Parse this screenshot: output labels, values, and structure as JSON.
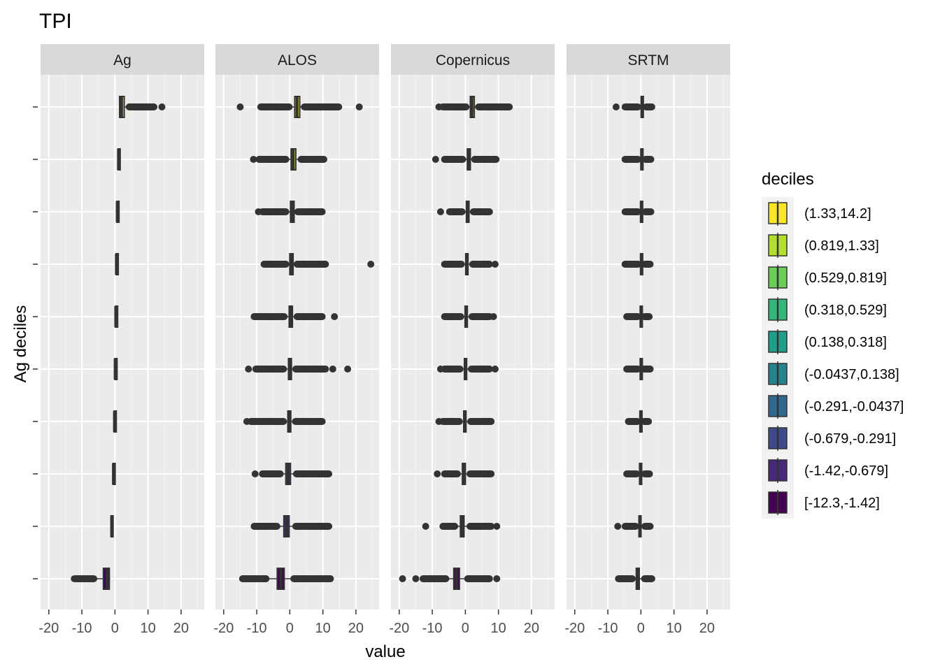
{
  "chart_data": {
    "type": "boxplot",
    "title": "TPI",
    "xlabel": "value",
    "ylabel": "Ag deciles",
    "xlim": [
      -22.5,
      27
    ],
    "x_ticks": [
      -20,
      -10,
      0,
      10,
      20
    ],
    "x_tick_labels": [
      "-20",
      "-10",
      "0",
      "10",
      "20"
    ],
    "grid": true,
    "facets": [
      "Ag",
      "ALOS",
      "Copernicus",
      "SRTM"
    ],
    "legend": {
      "title": "deciles",
      "position": "right",
      "items": [
        {
          "label": "(1.33,14.2]",
          "color": "#FDE725"
        },
        {
          "label": "(0.819,1.33]",
          "color": "#B4DE2C"
        },
        {
          "label": "(0.529,0.819]",
          "color": "#6DCD59"
        },
        {
          "label": "(0.318,0.529]",
          "color": "#35B779"
        },
        {
          "label": "(0.138,0.318]",
          "color": "#1F9E89"
        },
        {
          "label": "(-0.0437,0.138]",
          "color": "#26828E"
        },
        {
          "label": "(-0.291,-0.0437]",
          "color": "#31688E"
        },
        {
          "label": "(-0.679,-0.291]",
          "color": "#3E4A89"
        },
        {
          "label": "(-1.42,-0.679]",
          "color": "#482878"
        },
        {
          "label": "[-12.3,-1.42]",
          "color": "#440154"
        }
      ]
    },
    "series": [
      {
        "facet": "Ag",
        "boxes": [
          {
            "q1": 1.4,
            "median": 2.0,
            "q3": 2.8,
            "wlo": 1.33,
            "whi": 4.0,
            "outlier_ranges": [
              [
                4.1,
                12.0
              ]
            ],
            "outliers": [
              14.2
            ]
          },
          {
            "q1": 0.95,
            "median": 1.05,
            "q3": 1.2,
            "wlo": 0.82,
            "whi": 1.33,
            "outlier_ranges": [],
            "outliers": []
          },
          {
            "q1": 0.6,
            "median": 0.67,
            "q3": 0.76,
            "wlo": 0.53,
            "whi": 0.82,
            "outlier_ranges": [],
            "outliers": []
          },
          {
            "q1": 0.37,
            "median": 0.42,
            "q3": 0.48,
            "wlo": 0.32,
            "whi": 0.53,
            "outlier_ranges": [],
            "outliers": []
          },
          {
            "q1": 0.18,
            "median": 0.23,
            "q3": 0.27,
            "wlo": 0.14,
            "whi": 0.32,
            "outlier_ranges": [],
            "outliers": []
          },
          {
            "q1": 0.0,
            "median": 0.05,
            "q3": 0.1,
            "wlo": -0.04,
            "whi": 0.14,
            "outlier_ranges": [],
            "outliers": []
          },
          {
            "q1": -0.23,
            "median": -0.16,
            "q3": -0.1,
            "wlo": -0.29,
            "whi": -0.04,
            "outlier_ranges": [],
            "outliers": []
          },
          {
            "q1": -0.58,
            "median": -0.48,
            "q3": -0.38,
            "wlo": -0.68,
            "whi": -0.29,
            "outlier_ranges": [],
            "outliers": []
          },
          {
            "q1": -1.2,
            "median": -1.0,
            "q3": -0.85,
            "wlo": -1.42,
            "whi": -0.68,
            "outlier_ranges": [],
            "outliers": []
          },
          {
            "q1": -3.5,
            "median": -2.4,
            "q3": -1.7,
            "wlo": -6.0,
            "whi": -1.42,
            "outlier_ranges": [
              [
                -12.0,
                -6.2
              ]
            ],
            "outliers": [
              -12.3
            ]
          }
        ]
      },
      {
        "facet": "ALOS",
        "boxes": [
          {
            "q1": 1.5,
            "median": 2.2,
            "q3": 3.0,
            "wlo": 0.3,
            "whi": 4.0,
            "outlier_ranges": [
              [
                -9.0,
                0.0
              ],
              [
                4.2,
                15.0
              ]
            ],
            "outliers": [
              -15.0,
              21.0
            ]
          },
          {
            "q1": 0.4,
            "median": 1.0,
            "q3": 1.8,
            "wlo": -0.8,
            "whi": 3.0,
            "outlier_ranges": [
              [
                -9.5,
                -1.0
              ],
              [
                3.2,
                10.5
              ]
            ],
            "outliers": [
              -11.0
            ]
          },
          {
            "q1": 0.2,
            "median": 0.7,
            "q3": 1.3,
            "wlo": -0.8,
            "whi": 2.0,
            "outlier_ranges": [
              [
                -8.5,
                -1.0
              ],
              [
                2.2,
                10.0
              ]
            ],
            "outliers": [
              -9.5
            ]
          },
          {
            "q1": 0.0,
            "median": 0.5,
            "q3": 1.0,
            "wlo": -0.8,
            "whi": 1.8,
            "outlier_ranges": [
              [
                -8.0,
                -1.0
              ],
              [
                2.0,
                11.0
              ]
            ],
            "outliers": [
              24.5
            ]
          },
          {
            "q1": -0.2,
            "median": 0.3,
            "q3": 0.8,
            "wlo": -1.2,
            "whi": 1.6,
            "outlier_ranges": [
              [
                -11.0,
                -1.5
              ],
              [
                2.0,
                10.0
              ]
            ],
            "outliers": [
              13.5
            ]
          },
          {
            "q1": -0.4,
            "median": 0.0,
            "q3": 0.5,
            "wlo": -1.5,
            "whi": 1.4,
            "outlier_ranges": [
              [
                -10.5,
                -1.7
              ],
              [
                1.6,
                11.0
              ]
            ],
            "outliers": [
              -12.5,
              13.0,
              17.5
            ]
          },
          {
            "q1": -0.6,
            "median": -0.2,
            "q3": 0.3,
            "wlo": -1.5,
            "whi": 1.2,
            "outlier_ranges": [
              [
                -12.0,
                -1.7
              ],
              [
                1.5,
                10.0
              ]
            ],
            "outliers": [
              -13.0
            ]
          },
          {
            "q1": -1.2,
            "median": -0.5,
            "q3": 0.2,
            "wlo": -2.5,
            "whi": 1.5,
            "outlier_ranges": [
              [
                -8.5,
                -2.7
              ],
              [
                1.8,
                12.0
              ]
            ],
            "outliers": [
              -10.5
            ]
          },
          {
            "q1": -1.8,
            "median": -1.0,
            "q3": -0.2,
            "wlo": -3.5,
            "whi": 1.4,
            "outlier_ranges": [
              [
                -11.0,
                -3.7
              ],
              [
                1.6,
                12.0
              ]
            ],
            "outliers": []
          },
          {
            "q1": -3.8,
            "median": -2.7,
            "q3": -1.7,
            "wlo": -6.8,
            "whi": 0.8,
            "outlier_ranges": [
              [
                -14.5,
                -7.0
              ],
              [
                1.0,
                12.5
              ]
            ],
            "outliers": []
          }
        ]
      },
      {
        "facet": "Copernicus",
        "boxes": [
          {
            "q1": 1.5,
            "median": 2.0,
            "q3": 2.7,
            "wlo": 0.6,
            "whi": 3.5,
            "outlier_ranges": [
              [
                -7.0,
                0.4
              ],
              [
                3.8,
                13.5
              ]
            ],
            "outliers": [
              -8.0
            ]
          },
          {
            "q1": 0.6,
            "median": 1.0,
            "q3": 1.5,
            "wlo": -0.4,
            "whi": 2.4,
            "outlier_ranges": [
              [
                -6.5,
                -0.6
              ],
              [
                2.6,
                9.5
              ]
            ],
            "outliers": [
              -9.0
            ]
          },
          {
            "q1": 0.3,
            "median": 0.6,
            "q3": 1.1,
            "wlo": -0.6,
            "whi": 2.0,
            "outlier_ranges": [
              [
                -5.0,
                -0.8
              ],
              [
                2.2,
                7.5
              ]
            ],
            "outliers": [
              -7.5
            ]
          },
          {
            "q1": 0.1,
            "median": 0.4,
            "q3": 0.8,
            "wlo": -0.8,
            "whi": 1.8,
            "outlier_ranges": [
              [
                -6.5,
                -1.0
              ],
              [
                2.0,
                7.5
              ]
            ],
            "outliers": [
              9.0
            ]
          },
          {
            "q1": -0.1,
            "median": 0.2,
            "q3": 0.6,
            "wlo": -1.0,
            "whi": 1.6,
            "outlier_ranges": [
              [
                -6.5,
                -1.2
              ],
              [
                1.8,
                7.5
              ]
            ],
            "outliers": [
              8.5
            ]
          },
          {
            "q1": -0.3,
            "median": 0.0,
            "q3": 0.4,
            "wlo": -1.2,
            "whi": 1.4,
            "outlier_ranges": [
              [
                -6.5,
                -1.4
              ],
              [
                1.6,
                7.5
              ]
            ],
            "outliers": [
              -7.5,
              9.0
            ]
          },
          {
            "q1": -0.5,
            "median": -0.2,
            "q3": 0.2,
            "wlo": -1.4,
            "whi": 1.2,
            "outlier_ranges": [
              [
                -7.0,
                -1.6
              ],
              [
                1.4,
                8.0
              ]
            ],
            "outliers": [
              -8.0
            ]
          },
          {
            "q1": -0.9,
            "median": -0.5,
            "q3": 0.0,
            "wlo": -2.0,
            "whi": 1.0,
            "outlier_ranges": [
              [
                -6.5,
                -2.2
              ],
              [
                1.2,
                8.0
              ]
            ],
            "outliers": [
              -8.5
            ]
          },
          {
            "q1": -1.5,
            "median": -1.0,
            "q3": -0.4,
            "wlo": -2.8,
            "whi": 1.0,
            "outlier_ranges": [
              [
                -7.0,
                -3.0
              ],
              [
                1.2,
                8.0
              ]
            ],
            "outliers": [
              -12.0,
              9.5
            ]
          },
          {
            "q1": -3.5,
            "median": -2.7,
            "q3": -1.8,
            "wlo": -5.5,
            "whi": 0.3,
            "outlier_ranges": [
              [
                -13.0,
                -5.7
              ],
              [
                0.5,
                7.5
              ]
            ],
            "outliers": [
              -19.0,
              -15.0,
              9.5
            ]
          }
        ]
      },
      {
        "facet": "SRTM",
        "boxes": [
          {
            "q1": 0.1,
            "median": 0.3,
            "q3": 0.6,
            "wlo": -0.5,
            "whi": 1.2,
            "outlier_ranges": [
              [
                -5.0,
                -0.7
              ],
              [
                1.4,
                3.5
              ]
            ],
            "outliers": [
              -7.5
            ]
          },
          {
            "q1": 0.0,
            "median": 0.2,
            "q3": 0.5,
            "wlo": -0.5,
            "whi": 1.0,
            "outlier_ranges": [
              [
                -5.0,
                -0.7
              ],
              [
                1.2,
                3.2
              ]
            ],
            "outliers": []
          },
          {
            "q1": -0.1,
            "median": 0.1,
            "q3": 0.4,
            "wlo": -0.5,
            "whi": 0.9,
            "outlier_ranges": [
              [
                -5.0,
                -0.7
              ],
              [
                1.1,
                3.2
              ]
            ],
            "outliers": []
          },
          {
            "q1": -0.1,
            "median": 0.1,
            "q3": 0.3,
            "wlo": -0.5,
            "whi": 0.8,
            "outlier_ranges": [
              [
                -5.0,
                -0.7
              ],
              [
                1.0,
                3.0
              ]
            ],
            "outliers": []
          },
          {
            "q1": -0.2,
            "median": 0.0,
            "q3": 0.3,
            "wlo": -0.6,
            "whi": 0.7,
            "outlier_ranges": [
              [
                -4.5,
                -0.8
              ],
              [
                0.9,
                2.7
              ]
            ],
            "outliers": []
          },
          {
            "q1": -0.2,
            "median": 0.0,
            "q3": 0.2,
            "wlo": -0.6,
            "whi": 0.6,
            "outlier_ranges": [
              [
                -4.5,
                -0.8
              ],
              [
                0.8,
                3.0
              ]
            ],
            "outliers": []
          },
          {
            "q1": -0.3,
            "median": -0.1,
            "q3": 0.2,
            "wlo": -0.7,
            "whi": 0.6,
            "outlier_ranges": [
              [
                -4.0,
                -0.9
              ],
              [
                0.8,
                2.5
              ]
            ],
            "outliers": []
          },
          {
            "q1": -0.4,
            "median": -0.2,
            "q3": 0.1,
            "wlo": -0.9,
            "whi": 0.7,
            "outlier_ranges": [
              [
                -4.5,
                -1.1
              ],
              [
                0.9,
                2.8
              ]
            ],
            "outliers": []
          },
          {
            "q1": -0.6,
            "median": -0.3,
            "q3": 0.0,
            "wlo": -1.2,
            "whi": 0.8,
            "outlier_ranges": [
              [
                -5.0,
                -1.4
              ],
              [
                1.0,
                3.0
              ]
            ],
            "outliers": [
              -7.0
            ]
          },
          {
            "q1": -1.4,
            "median": -1.0,
            "q3": -0.5,
            "wlo": -2.2,
            "whi": 0.7,
            "outlier_ranges": [
              [
                -7.0,
                -2.4
              ],
              [
                0.9,
                3.5
              ]
            ],
            "outliers": []
          }
        ]
      }
    ]
  }
}
